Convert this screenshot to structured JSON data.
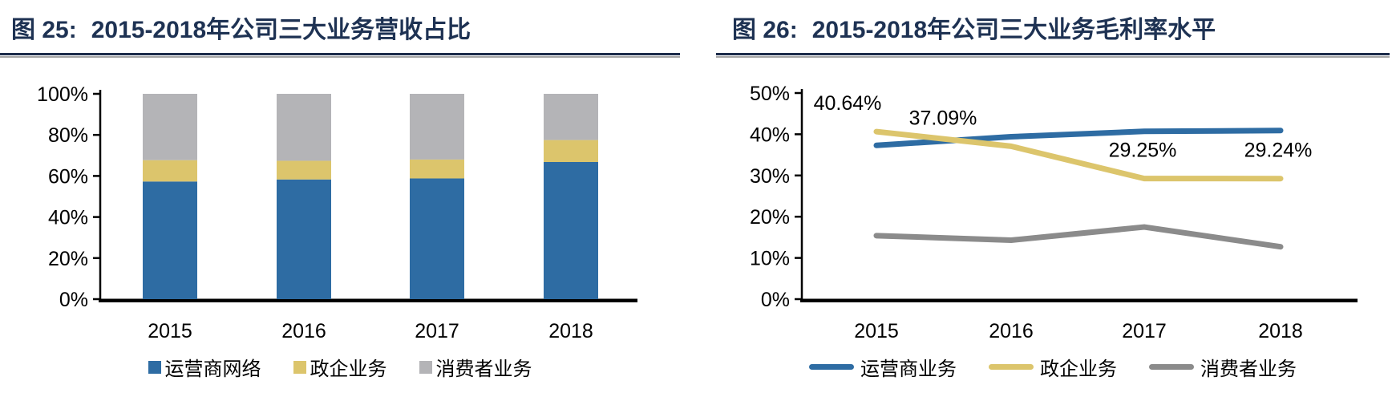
{
  "figures": [
    {
      "label": "图 25:",
      "title": "2015-2018年公司三大业务营收占比"
    },
    {
      "label": "图 26:",
      "title": "2015-2018年公司三大业务毛利率水平"
    }
  ],
  "colors": {
    "title_navy": "#1e3253",
    "rule_navy": "#1c2b4a",
    "rule_gray": "#a6a6a6",
    "blue": "#2e6ca3",
    "yellow": "#dcc56c",
    "gray_bar": "#b4b4b7",
    "gray_line": "#8b8b8b",
    "axis_black": "#000000"
  },
  "chart_data": [
    {
      "type": "bar",
      "stacked": true,
      "percent": true,
      "title": "图 25: 2015-2018年公司三大业务营收占比",
      "categories": [
        "2015",
        "2016",
        "2017",
        "2018"
      ],
      "series": [
        {
          "name": "运营商网络",
          "color_key": "blue",
          "values": [
            57.3,
            58.3,
            58.8,
            66.8
          ]
        },
        {
          "name": "政企业务",
          "color_key": "yellow",
          "values": [
            10.4,
            9.1,
            9.2,
            10.7
          ]
        },
        {
          "name": "消费者业务",
          "color_key": "gray_bar",
          "values": [
            32.3,
            32.6,
            32.0,
            22.5
          ]
        }
      ],
      "ylim": [
        0,
        100
      ],
      "ytick_labels": [
        "0%",
        "20%",
        "40%",
        "60%",
        "80%",
        "100%"
      ],
      "grid": false,
      "legend_position": "bottom"
    },
    {
      "type": "line",
      "title": "图 26: 2015-2018年公司三大业务毛利率水平",
      "categories": [
        "2015",
        "2016",
        "2017",
        "2018"
      ],
      "series": [
        {
          "name": "运营商业务",
          "color_key": "blue",
          "values": [
            37.3,
            39.4,
            40.7,
            40.9
          ]
        },
        {
          "name": "政企业务",
          "color_key": "yellow",
          "values": [
            40.64,
            37.09,
            29.25,
            29.24
          ],
          "data_labels": [
            "40.64%",
            "37.09%",
            "29.25%",
            "29.24%"
          ]
        },
        {
          "name": "消费者业务",
          "color_key": "gray_line",
          "values": [
            15.4,
            14.3,
            17.5,
            12.7
          ]
        }
      ],
      "ylim": [
        0,
        50
      ],
      "ytick_labels": [
        "0%",
        "10%",
        "20%",
        "30%",
        "40%",
        "50%"
      ],
      "grid": false,
      "legend_position": "bottom"
    }
  ]
}
